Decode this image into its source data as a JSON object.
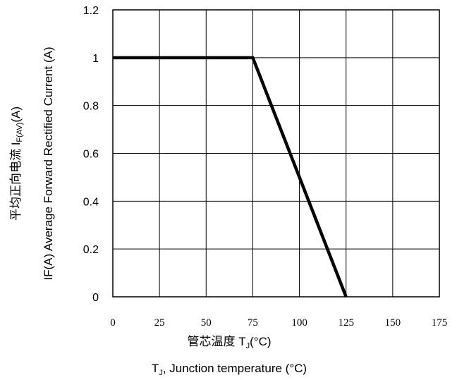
{
  "chart_data": {
    "type": "line",
    "title": "",
    "x": [
      0,
      75,
      125
    ],
    "series": [
      {
        "values": [
          1,
          1,
          0
        ]
      }
    ],
    "xlabel_cn": "管芯温度",
    "xlabel_sym": "T",
    "xlabel_sub": "J",
    "xlabel_unit": "(°C)",
    "xlabel2_sym": "T",
    "xlabel2_sub": "J",
    "xlabel2_text": ", Junction temperature (°C)",
    "ylabel_left_cn": "平均正向电流",
    "ylabel_left_sym": "I",
    "ylabel_left_sub": "F(AV)",
    "ylabel_left_unit": "(A)",
    "ylabel_right": "IF(A)  Average Forward Rectified Current (A)",
    "xlim": [
      0,
      175
    ],
    "ylim": [
      0,
      1.2
    ],
    "xticks": [
      0,
      25,
      50,
      75,
      100,
      125,
      150,
      175
    ],
    "yticks": [
      0,
      0.2,
      0.4,
      0.6,
      0.8,
      1,
      1.2
    ],
    "xtick_labels": [
      "0",
      "25",
      "50",
      "75",
      "100",
      "125",
      "150",
      "175"
    ],
    "ytick_labels": [
      "0",
      "0.2",
      "0.4",
      "0.6",
      "0.8",
      "1",
      "1.2"
    ],
    "grid": true,
    "line_color": "#000000"
  }
}
